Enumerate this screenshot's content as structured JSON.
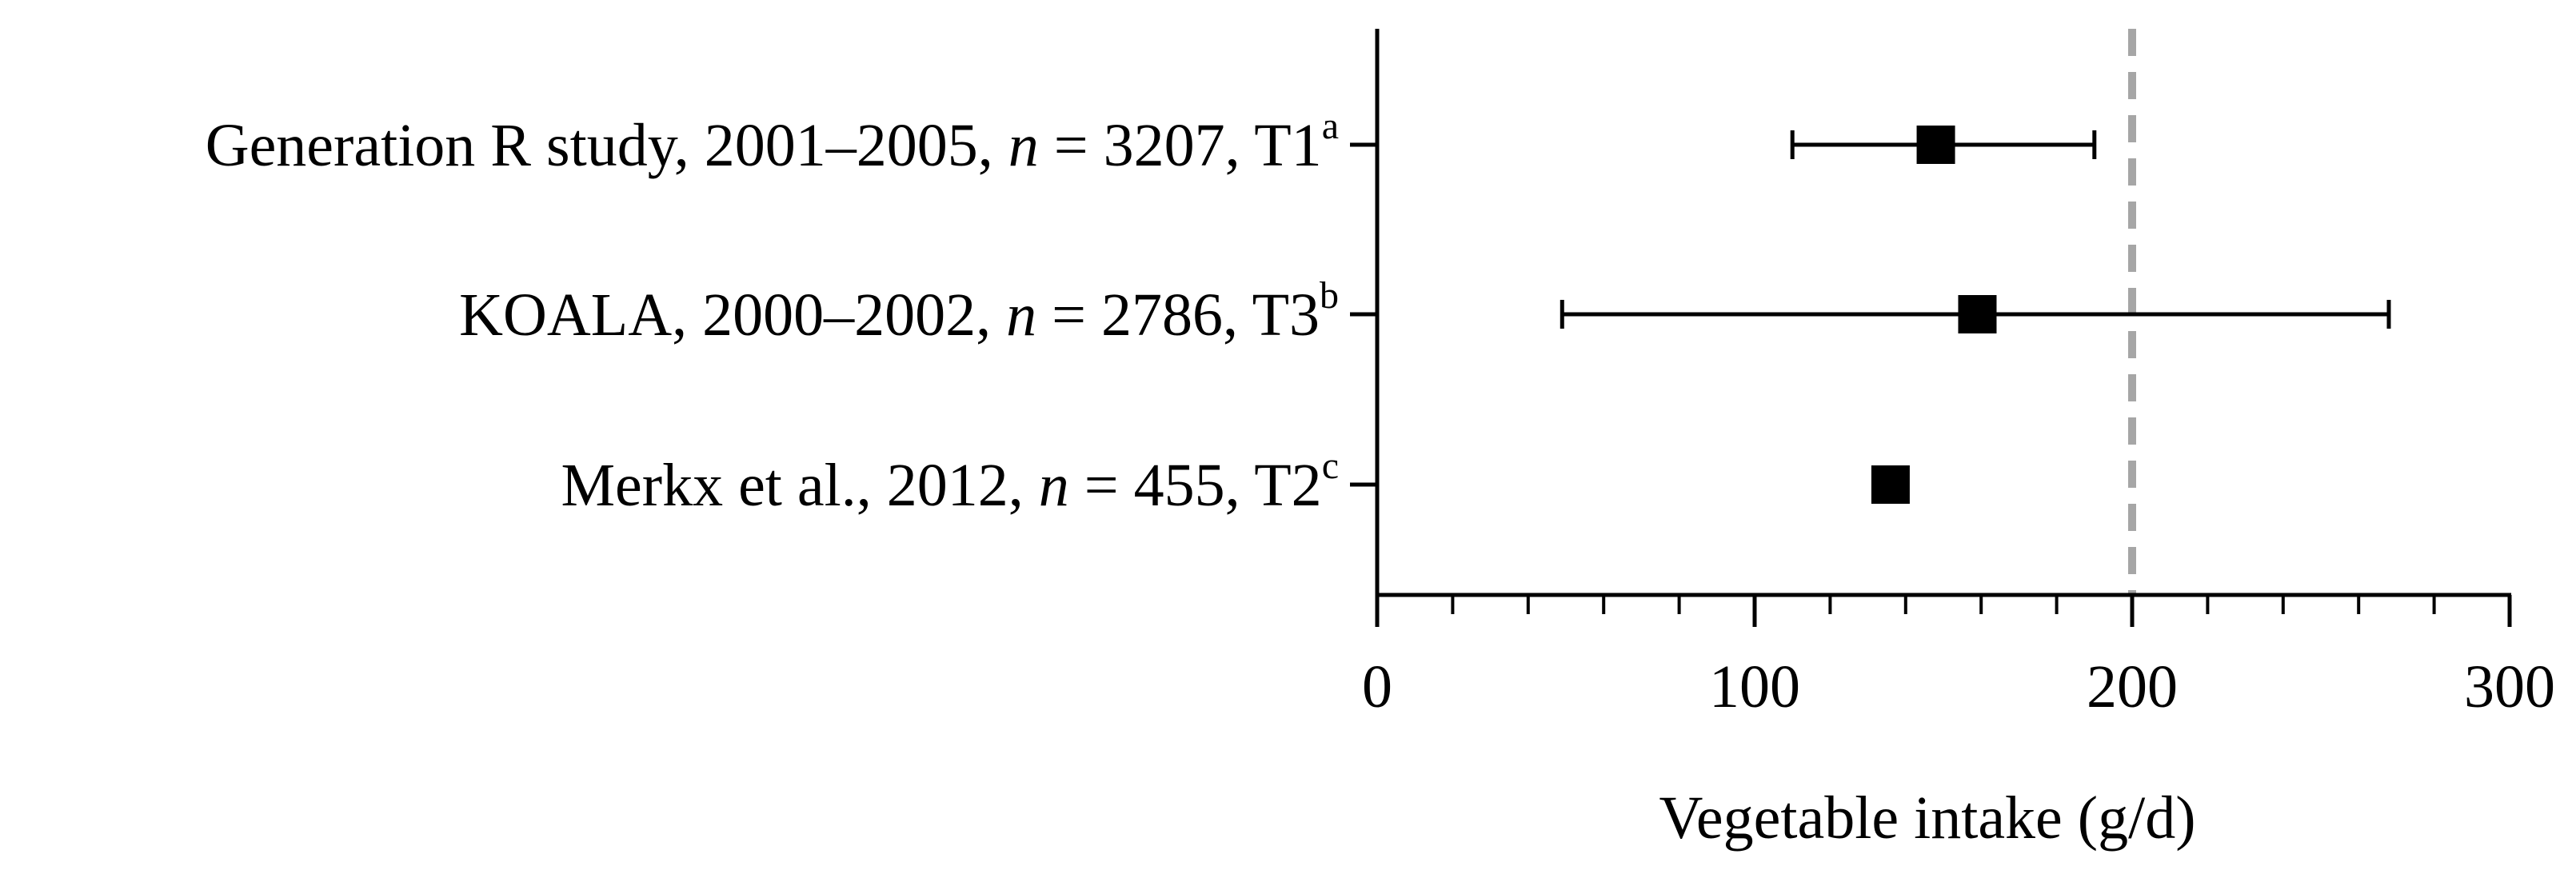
{
  "chart_data": {
    "type": "forest",
    "title": "",
    "xlabel": "Vegetable intake (g/d)",
    "xlim": [
      0,
      300
    ],
    "x_ticks": [
      0,
      100,
      200,
      300
    ],
    "minor_tick_step": 20,
    "reference_line": {
      "x": 200,
      "style": "dashed",
      "color": "#a6a6a6"
    },
    "marker_color": "#000000",
    "rows": [
      {
        "label_prefix": "Generation R study, 2001–2005, ",
        "label_italic": "n",
        "label_suffix": " = 3207, T1",
        "superscript": "a",
        "estimate": 148,
        "lower": 110,
        "upper": 190
      },
      {
        "label_prefix": "KOALA, 2000–2002, ",
        "label_italic": "n",
        "label_suffix": " = 2786, T3",
        "superscript": "b",
        "estimate": 159,
        "lower": 49,
        "upper": 268
      },
      {
        "label_prefix": "Merkx et al., 2012, ",
        "label_italic": "n",
        "label_suffix": " = 455, T2",
        "superscript": "c",
        "estimate": 136,
        "lower": null,
        "upper": null
      }
    ]
  }
}
